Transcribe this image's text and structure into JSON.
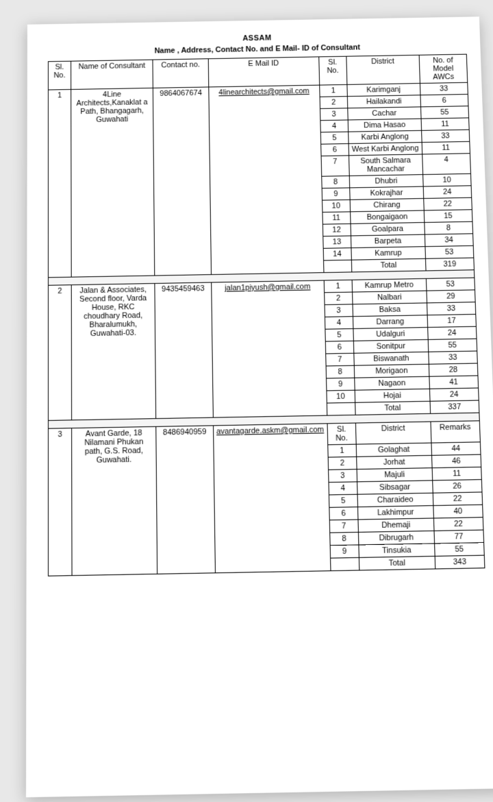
{
  "doc_header_partial": "ASSAM",
  "table_title": "Name , Address, Contact No. and E Mail- ID of Consultant",
  "headers": {
    "sl": "Sl. No.",
    "name": "Name of Consultant",
    "contact": "Contact no.",
    "email": "E Mail ID",
    "inner_sl": "Sl. No.",
    "district": "District",
    "awc": "No. of Model AWCs",
    "remarks": "Remarks"
  },
  "groups": [
    {
      "sl": "1",
      "name": "4Line Architects,Kanaklat a Path, Bhangagarh, Guwahati",
      "contact": "9864067674",
      "email": "4linearchitects@gmail.com",
      "rows": [
        {
          "n": "1",
          "d": "Karimganj",
          "v": "33"
        },
        {
          "n": "2",
          "d": "Hailakandi",
          "v": "6"
        },
        {
          "n": "3",
          "d": "Cachar",
          "v": "55"
        },
        {
          "n": "4",
          "d": "Dima Hasao",
          "v": "11"
        },
        {
          "n": "5",
          "d": "Karbi Anglong",
          "v": "33"
        },
        {
          "n": "6",
          "d": "West Karbi Anglong",
          "v": "11"
        },
        {
          "n": "7",
          "d": "South Salmara Mancachar",
          "v": "4"
        },
        {
          "n": "8",
          "d": "Dhubri",
          "v": "10"
        },
        {
          "n": "9",
          "d": "Kokrajhar",
          "v": "24"
        },
        {
          "n": "10",
          "d": "Chirang",
          "v": "22"
        },
        {
          "n": "11",
          "d": "Bongaigaon",
          "v": "15"
        },
        {
          "n": "12",
          "d": "Goalpara",
          "v": "8"
        },
        {
          "n": "13",
          "d": "Barpeta",
          "v": "34"
        },
        {
          "n": "14",
          "d": "Kamrup",
          "v": "53"
        }
      ],
      "total_label": "Total",
      "total": "319",
      "last_col_header": "awc"
    },
    {
      "sl": "2",
      "name": "Jalan & Associates, Second floor, Varda House, RKC choudhary Road, Bharalumukh, Guwahati-03.",
      "contact": "9435459463",
      "email": "jalan1piyush@gmail.com",
      "rows": [
        {
          "n": "1",
          "d": "Kamrup Metro",
          "v": "53"
        },
        {
          "n": "2",
          "d": "Nalbari",
          "v": "29"
        },
        {
          "n": "3",
          "d": "Baksa",
          "v": "33"
        },
        {
          "n": "4",
          "d": "Darrang",
          "v": "17"
        },
        {
          "n": "5",
          "d": "Udalguri",
          "v": "24"
        },
        {
          "n": "6",
          "d": "Sonitpur",
          "v": "55"
        },
        {
          "n": "7",
          "d": "Biswanath",
          "v": "33"
        },
        {
          "n": "8",
          "d": "Morigaon",
          "v": "28"
        },
        {
          "n": "9",
          "d": "Nagaon",
          "v": "41"
        },
        {
          "n": "10",
          "d": "Hojai",
          "v": "24"
        }
      ],
      "total_label": "Total",
      "total": "337",
      "last_col_header": "none"
    },
    {
      "sl": "3",
      "name": "Avant Garde, 18 Nilamani Phukan path, G.S. Road, Guwahati.",
      "contact": "8486940959",
      "email": "avantagarde.askm@gmail.com",
      "rows": [
        {
          "n": "1",
          "d": "Golaghat",
          "v": "44"
        },
        {
          "n": "2",
          "d": "Jorhat",
          "v": "46"
        },
        {
          "n": "3",
          "d": "Majuli",
          "v": "11"
        },
        {
          "n": "4",
          "d": "Sibsagar",
          "v": "26"
        },
        {
          "n": "5",
          "d": "Charaideo",
          "v": "22"
        },
        {
          "n": "6",
          "d": "Lakhimpur",
          "v": "40"
        },
        {
          "n": "7",
          "d": "Dhemaji",
          "v": "22"
        },
        {
          "n": "8",
          "d": "Dibrugarh",
          "v": "77"
        },
        {
          "n": "9",
          "d": "Tinsukia",
          "v": "55"
        }
      ],
      "total_label": "Total",
      "total": "343",
      "inner_header": true,
      "last_col_header": "remarks"
    }
  ],
  "style": {
    "font_size_table": 11,
    "border_color": "#000000",
    "paper_bg": "#ffffff",
    "page_bg": "#e8e8e8"
  }
}
